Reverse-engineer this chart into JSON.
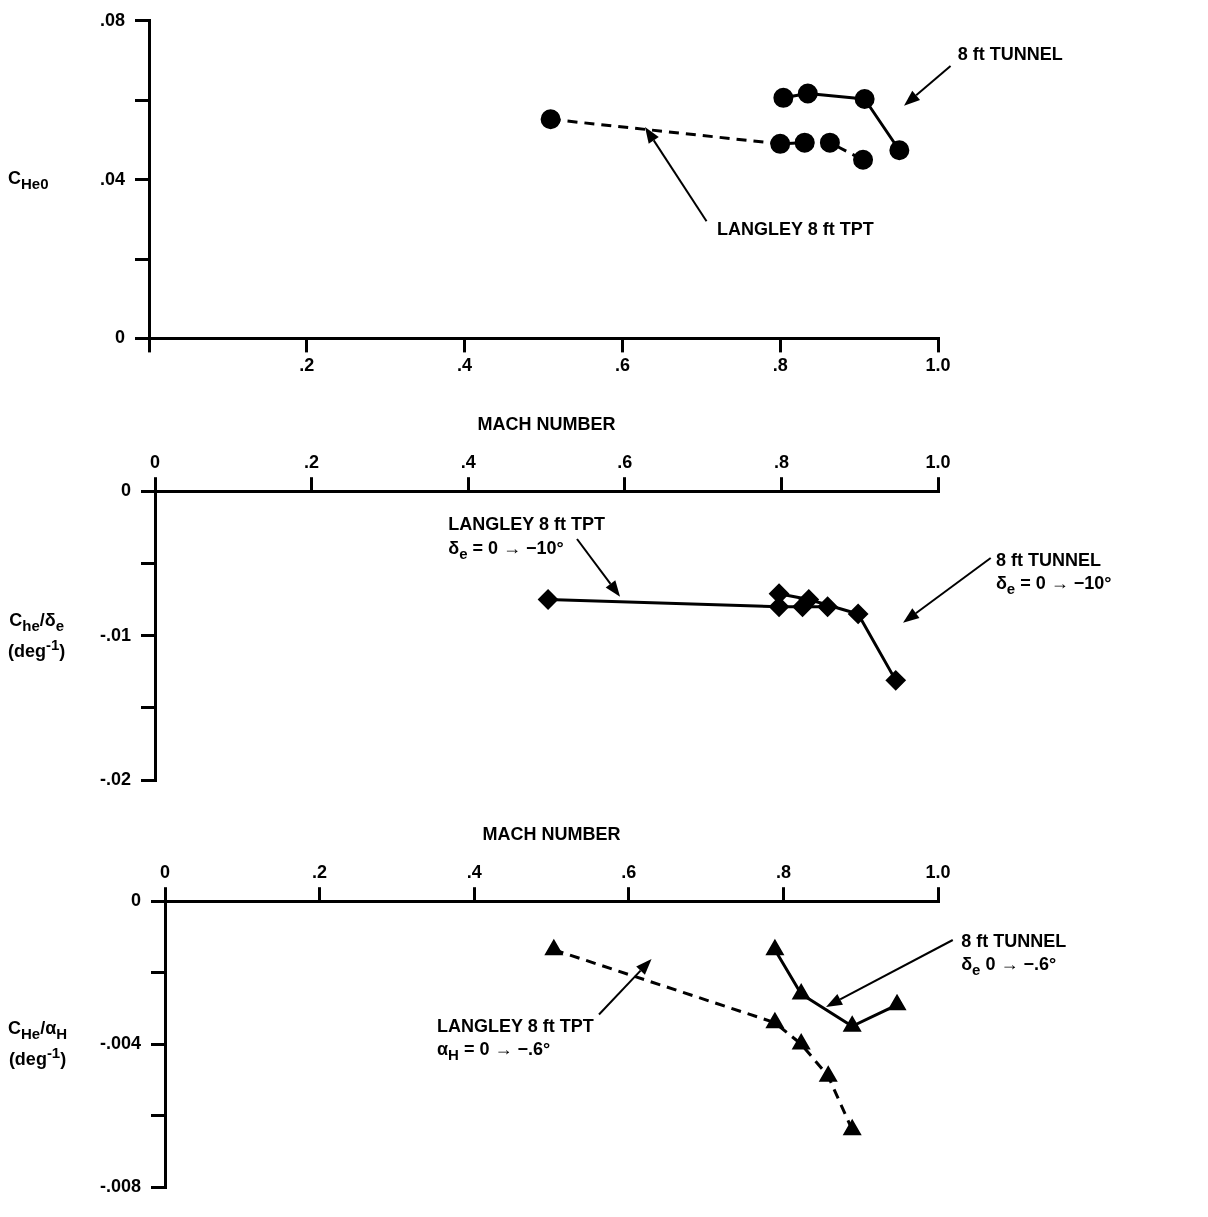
{
  "chart_data": [
    {
      "type": "line",
      "ylabel": "C$_{He0}$",
      "xlim": [
        0,
        1.0
      ],
      "xticks": [
        {
          "value": 0,
          "label": null
        },
        {
          "value": 0.2,
          "label": ".2"
        },
        {
          "value": 0.4,
          "label": ".4"
        },
        {
          "value": 0.6,
          "label": ".6"
        },
        {
          "value": 0.8,
          "label": ".8"
        },
        {
          "value": 1.0,
          "label": "1.0"
        }
      ],
      "ylim": [
        0,
        0.08
      ],
      "yticks": [
        {
          "value": 0,
          "label": "0"
        },
        {
          "value": 0.02,
          "label": null
        },
        {
          "value": 0.04,
          "label": ".04"
        },
        {
          "value": 0.06,
          "label": null
        },
        {
          "value": 0.08,
          "label": ".08"
        }
      ],
      "grid": false,
      "legend": false,
      "series": [
        {
          "color": "#000000",
          "marker": "circle",
          "line_style": "dashed",
          "x": [
            0.509,
            0.8,
            0.831,
            0.863,
            0.905
          ],
          "values": [
            0.0552,
            0.049,
            0.0493,
            0.0493,
            0.045
          ]
        },
        {
          "color": "#000000",
          "marker": "circle",
          "line_style": "solid",
          "x": [
            0.804,
            0.835,
            0.907,
            0.951
          ],
          "values": [
            0.0606,
            0.0617,
            0.0603,
            0.0474
          ]
        }
      ],
      "annotations": [
        "8 ft TUNNEL",
        "LANGLEY 8 ft TPT"
      ]
    },
    {
      "type": "line",
      "xlabel": "MACH NUMBER",
      "ylabel": "C$_{he}$/δ$_{e}$\n(deg$^{-1}$)",
      "xlim": [
        0,
        1.0
      ],
      "xticks": [
        {
          "value": 0,
          "label": "0"
        },
        {
          "value": 0.2,
          "label": ".2"
        },
        {
          "value": 0.4,
          "label": ".4"
        },
        {
          "value": 0.6,
          "label": ".6"
        },
        {
          "value": 0.8,
          "label": ".8"
        },
        {
          "value": 1.0,
          "label": "1.0"
        }
      ],
      "ylim": [
        -0.02,
        0
      ],
      "yticks": [
        {
          "value": -0.02,
          "label": "-.02"
        },
        {
          "value": -0.015,
          "label": null
        },
        {
          "value": -0.01,
          "label": "-.01"
        },
        {
          "value": -0.005,
          "label": null
        },
        {
          "value": 0,
          "label": "0"
        }
      ],
      "grid": false,
      "legend": false,
      "series": [
        {
          "color": "#000000",
          "marker": "diamond",
          "line_style": "solid",
          "x": [
            0.502,
            0.797,
            0.827,
            0.859
          ],
          "values": [
            -0.0075,
            -0.008,
            -0.008,
            -0.008
          ]
        },
        {
          "color": "#000000",
          "marker": "diamond",
          "line_style": "solid",
          "x": [
            0.797,
            0.835,
            0.898,
            0.946
          ],
          "values": [
            -0.0071,
            -0.0075,
            -0.0085,
            -0.0131
          ]
        }
      ],
      "annotations": [
        "LANGLEY 8 ft TPT\nδ$_{e}$ = 0 → −10°",
        "8 ft TUNNEL\nδ$_{e}$ = 0 → −10°"
      ]
    },
    {
      "type": "line",
      "xlabel": "MACH NUMBER",
      "ylabel": "C$_{He}$/α$_{H}$\n(deg$^{-1}$)",
      "xlim": [
        0,
        1.0
      ],
      "xticks": [
        {
          "value": 0,
          "label": "0"
        },
        {
          "value": 0.2,
          "label": ".2"
        },
        {
          "value": 0.4,
          "label": ".4"
        },
        {
          "value": 0.6,
          "label": ".6"
        },
        {
          "value": 0.8,
          "label": ".8"
        },
        {
          "value": 1.0,
          "label": "1.0"
        }
      ],
      "ylim": [
        -0.008,
        0
      ],
      "yticks": [
        {
          "value": -0.008,
          "label": "-.008"
        },
        {
          "value": -0.006,
          "label": null
        },
        {
          "value": -0.004,
          "label": "-.004"
        },
        {
          "value": -0.002,
          "label": null
        },
        {
          "value": 0,
          "label": "0"
        }
      ],
      "grid": false,
      "legend": false,
      "series": [
        {
          "color": "#000000",
          "marker": "triangle",
          "line_style": "dashed",
          "x": [
            0.503,
            0.789,
            0.823,
            0.858,
            0.889
          ],
          "values": [
            -0.00136,
            -0.0034,
            -0.004,
            -0.0049,
            -0.0064
          ]
        },
        {
          "color": "#000000",
          "marker": "triangle",
          "line_style": "solid",
          "x": [
            0.789,
            0.823,
            0.889,
            0.947
          ],
          "values": [
            -0.00136,
            -0.0026,
            -0.0035,
            -0.0029
          ]
        }
      ],
      "annotations": [
        "8 ft TUNNEL\nδ$_{e}$ 0 → −.6°",
        "LANGLEY 8 ft TPT\nα$_{H}$ = 0 → −.6°"
      ]
    }
  ]
}
